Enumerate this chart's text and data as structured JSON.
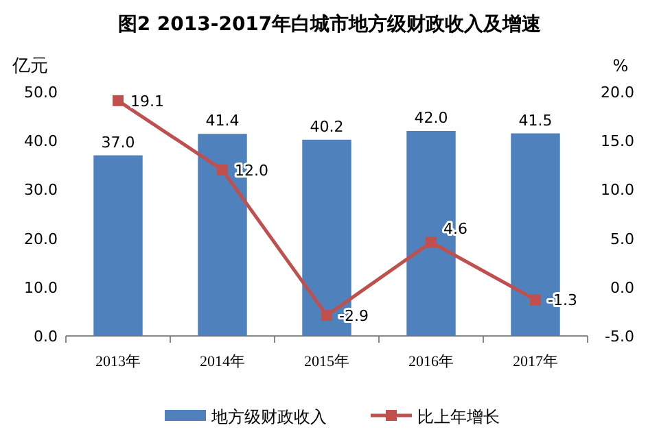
{
  "chart_data": {
    "type": "bar",
    "title": "图2 2013-2017年白城市地方级财政收入及增速",
    "ylabel": "亿元",
    "y2label": "%",
    "categories": [
      "2013年",
      "2014年",
      "2015年",
      "2016年",
      "2017年"
    ],
    "series": [
      {
        "name": "地方级财政收入",
        "color": "#4f81bd",
        "values": [
          37.0,
          41.4,
          40.2,
          42.0,
          41.5
        ],
        "value_labels": [
          "37.0",
          "41.4",
          "40.2",
          "42.0",
          "41.5"
        ]
      },
      {
        "name": "比上年增长",
        "type": "line",
        "axis": "y2",
        "color": "#c0504d",
        "marker": "square",
        "values": [
          19.1,
          12.0,
          -2.9,
          4.6,
          -1.3
        ],
        "value_labels": [
          "19.1",
          "12.0",
          "-2.9",
          "4.6",
          "-1.3"
        ]
      }
    ],
    "ylim": [
      0,
      50
    ],
    "yticks": [
      {
        "value": 0,
        "label": "0.0"
      },
      {
        "value": 10,
        "label": "10.0"
      },
      {
        "value": 20,
        "label": "20.0"
      },
      {
        "value": 30,
        "label": "30.0"
      },
      {
        "value": 40,
        "label": "40.0"
      },
      {
        "value": 50,
        "label": "50.0"
      }
    ],
    "y2lim": [
      -5,
      20
    ],
    "y2ticks": [
      {
        "value": -5,
        "label": "-5.0"
      },
      {
        "value": 0,
        "label": "0.0"
      },
      {
        "value": 5,
        "label": "5.0"
      },
      {
        "value": 10,
        "label": "10.0"
      },
      {
        "value": 15,
        "label": "15.0"
      },
      {
        "value": 20,
        "label": "20.0"
      }
    ],
    "grid": false,
    "legend": "bottom"
  }
}
